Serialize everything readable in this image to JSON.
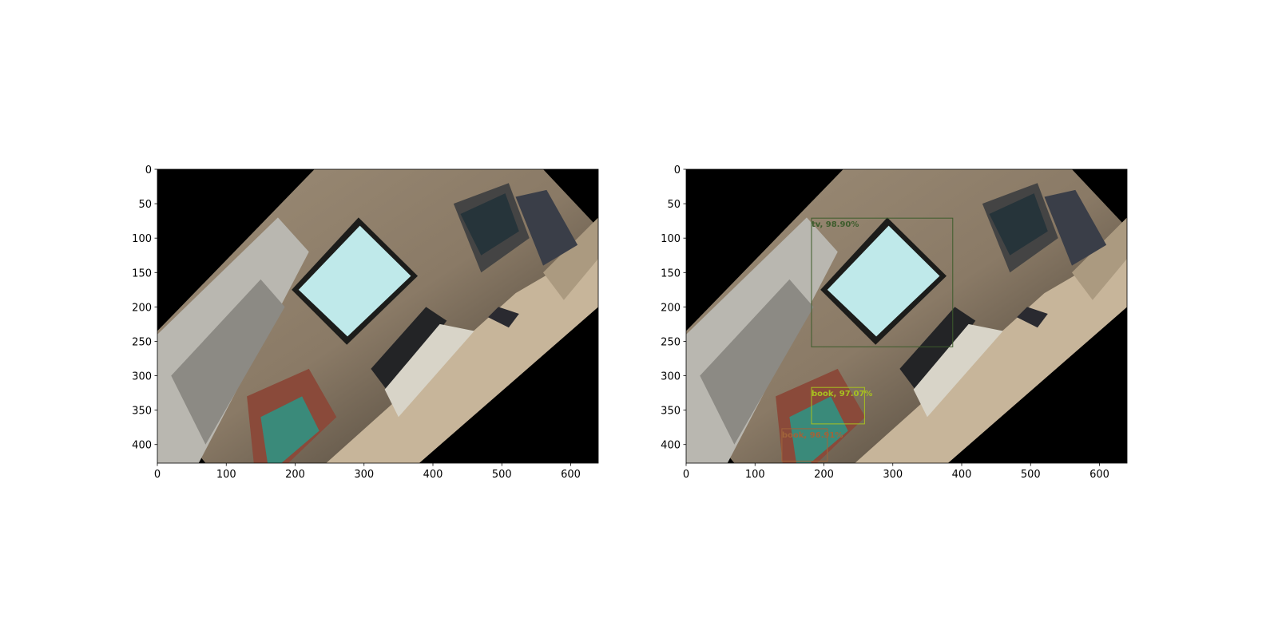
{
  "chart_data": [
    {
      "type": "image",
      "xlim": [
        0,
        640
      ],
      "ylim": [
        427,
        0
      ],
      "xticks": [
        0,
        100,
        200,
        300,
        400,
        500,
        600
      ],
      "yticks": [
        0,
        50,
        100,
        150,
        200,
        250,
        300,
        350,
        400
      ]
    },
    {
      "type": "image",
      "xlim": [
        0,
        640
      ],
      "ylim": [
        427,
        0
      ],
      "xticks": [
        0,
        100,
        200,
        300,
        400,
        500,
        600
      ],
      "yticks": [
        0,
        50,
        100,
        150,
        200,
        250,
        300,
        350,
        400
      ],
      "boxes": [
        {
          "label": "tv, 98.90%",
          "x0": 182,
          "y0": 71,
          "x1": 387,
          "y1": 258,
          "color": "#3d5c2c"
        },
        {
          "label": "book, 97.07%",
          "x0": 182,
          "y0": 317,
          "x1": 259,
          "y1": 370,
          "color": "#a8c020"
        },
        {
          "label": "book, 96.91%",
          "x0": 139,
          "y0": 377,
          "x1": 205,
          "y1": 424,
          "color": "#a0643a"
        }
      ]
    }
  ]
}
